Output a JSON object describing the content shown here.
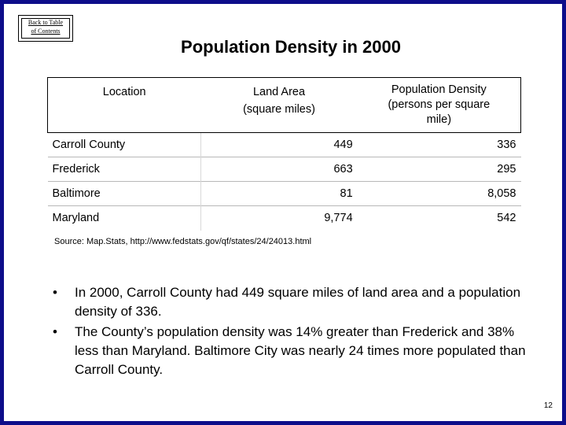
{
  "back_link": {
    "line1": "Back to Table",
    "line2": "of Contents"
  },
  "title": "Population Density in 2000",
  "table": {
    "headers": {
      "location": "Location",
      "land_area_line1": "Land Area",
      "land_area_line2": "(square miles)",
      "density_line1": "Population Density",
      "density_line2": "(persons per square",
      "density_line3": "mile)"
    },
    "rows": [
      {
        "location": "Carroll County",
        "land_area": "449",
        "density": "336"
      },
      {
        "location": "Frederick",
        "land_area": "663",
        "density": "295"
      },
      {
        "location": "Baltimore",
        "land_area": "81",
        "density": "8,058"
      },
      {
        "location": "Maryland",
        "land_area": "9,774",
        "density": "542"
      }
    ]
  },
  "source": "Source: Map.Stats, http://www.fedstats.gov/qf/states/24/24013.html",
  "bullets": [
    "In 2000, Carroll County had 449 square miles of land area and a population density of 336.",
    "The County’s population density was 14% greater than Frederick and 38% less than Maryland.  Baltimore City was nearly 24 times more populated than Carroll County."
  ],
  "page_number": "12"
}
